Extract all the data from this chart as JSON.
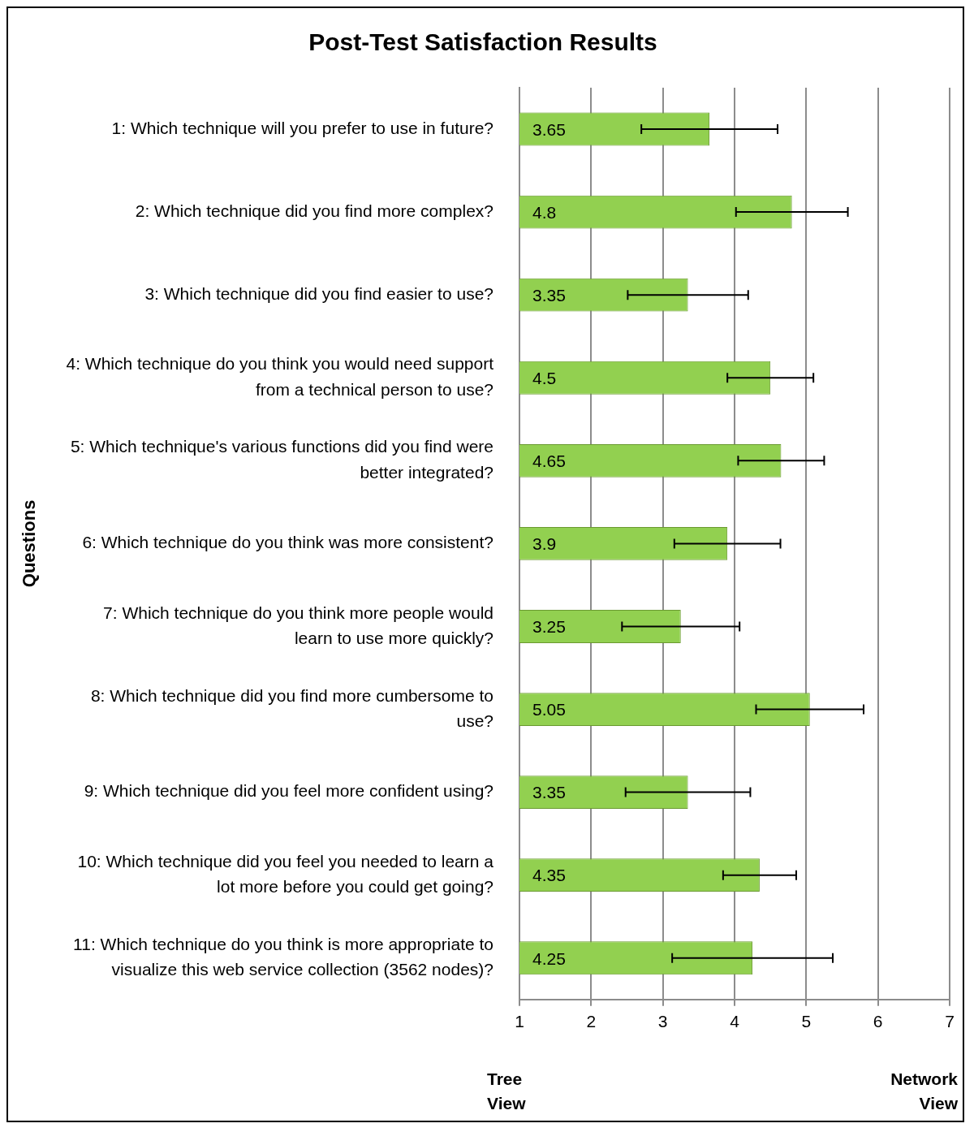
{
  "chart_data": {
    "type": "bar",
    "orientation": "horizontal",
    "title": "Post-Test Satisfaction Results",
    "ylabel": "Questions",
    "categories": [
      "1: Which technique will you prefer to use in future?",
      "2: Which technique did you find more complex?",
      "3: Which technique did you find easier to use?",
      "4: Which technique do you think you would need support from a technical person to use?",
      "5: Which technique's various functions did you find were better integrated?",
      "6: Which technique do you think was more consistent?",
      "7: Which technique do you think more people would learn to use more quickly?",
      "8: Which technique did you find more cumbersome to use?",
      "9: Which technique did you feel more confident using?",
      "10: Which technique did you feel you needed to learn a lot more before you could get going?",
      "11: Which technique do you think is more appropriate to visualize this web service collection (3562 nodes)?"
    ],
    "values": [
      3.65,
      4.8,
      3.35,
      4.5,
      4.65,
      3.9,
      3.25,
      5.05,
      3.35,
      4.35,
      4.25
    ],
    "errors": [
      0.95,
      0.78,
      0.84,
      0.6,
      0.6,
      0.74,
      0.82,
      0.75,
      0.87,
      0.51,
      1.12
    ],
    "color": "#92d050",
    "xlim": [
      1,
      7
    ],
    "xticks": [
      1,
      2,
      3,
      4,
      5,
      6,
      7
    ],
    "grid": "x",
    "data_labels": true,
    "legend": false,
    "annotations": [
      "Tree\nView",
      "Network\nView"
    ]
  }
}
